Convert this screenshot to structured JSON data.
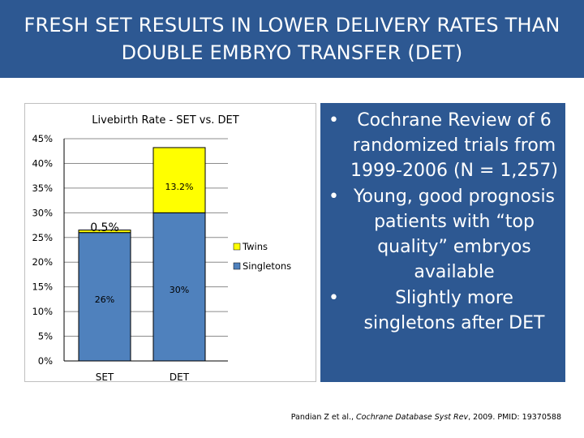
{
  "slide": {
    "title": "FRESH SET RESULTS IN LOWER DELIVERY RATES THAN\nDOUBLE EMBRYO TRANSFER (DET)"
  },
  "bullets": [
    "Cochrane Review of 6 randomized trials from 1999-2006 (N = 1,257)",
    "Young, good prognosis patients with “top quality” embryos available",
    "Slightly more singletons after DET"
  ],
  "bullet_symbol": "•",
  "citation": {
    "authors": "Pandian Z et al., ",
    "journal": "Cochrane Database Syst Rev",
    "rest": ", 2009. PMID: 19370588"
  },
  "colors": {
    "title_bg": "#2d5892",
    "panel_bg": "#2d5892",
    "singletons": "#4f81bd",
    "twins": "#ffff00",
    "bar_outline": "#000000"
  },
  "chart_data": {
    "type": "bar",
    "stacked": true,
    "title": "Livebirth Rate - SET vs. DET",
    "categories": [
      "SET",
      "DET"
    ],
    "series": [
      {
        "name": "Singletons",
        "values": [
          26,
          30
        ],
        "labels": [
          "26%",
          "30%"
        ]
      },
      {
        "name": "Twins",
        "values": [
          0.5,
          13.2
        ],
        "labels": [
          "0.5%",
          "13.2%"
        ]
      }
    ],
    "legend_order": [
      "Twins",
      "Singletons"
    ],
    "ylim": [
      0,
      45
    ],
    "yticks": [
      0,
      5,
      10,
      15,
      20,
      25,
      30,
      35,
      40,
      45
    ],
    "ytick_labels": [
      "0%",
      "5%",
      "10%",
      "15%",
      "20%",
      "25%",
      "30%",
      "35%",
      "40%",
      "45%"
    ],
    "gridlines": true,
    "legend_position": "right"
  }
}
